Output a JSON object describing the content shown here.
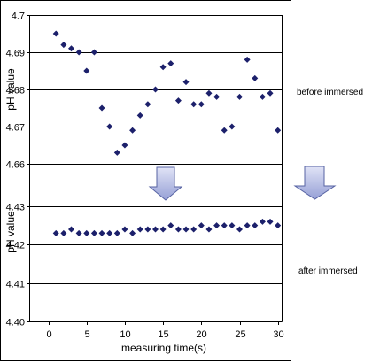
{
  "chart_data": {
    "type": "scatter",
    "xlabel": "measuring time(s)",
    "xlim": [
      -2.5,
      30.5
    ],
    "x_ticks": [
      0,
      5,
      10,
      15,
      20,
      25,
      30
    ],
    "x": [
      1,
      2,
      3,
      4,
      5,
      6,
      7,
      8,
      9,
      10,
      11,
      12,
      13,
      14,
      15,
      16,
      17,
      18,
      19,
      20,
      21,
      22,
      23,
      24,
      25,
      26,
      27,
      28,
      29,
      30
    ],
    "grid": true,
    "y_axis_break": true,
    "legend": "right",
    "marker": "diamond",
    "panels": [
      {
        "ylabel": "pH value",
        "ylim": [
          4.66,
          4.7
        ],
        "y_ticks": [
          "4.7",
          "4.69",
          "4.68",
          "4.67",
          "4.66"
        ],
        "series": [
          {
            "name": "before immersed",
            "values": [
              4.695,
              4.692,
              4.691,
              4.69,
              4.685,
              4.69,
              4.675,
              4.67,
              4.663,
              4.665,
              4.669,
              4.673,
              4.676,
              4.68,
              4.686,
              4.687,
              4.677,
              4.682,
              4.676,
              4.676,
              4.679,
              4.678,
              4.669,
              4.67,
              4.678,
              4.688,
              4.683,
              4.678,
              4.679,
              4.669
            ]
          }
        ]
      },
      {
        "ylabel": "pH value",
        "ylim": [
          4.4,
          4.43
        ],
        "y_ticks": [
          "4.43",
          "4.42",
          "4.41",
          "4.40"
        ],
        "series": [
          {
            "name": "after immersed",
            "values": [
              4.423,
              4.423,
              4.424,
              4.423,
              4.423,
              4.423,
              4.423,
              4.423,
              4.423,
              4.424,
              4.423,
              4.424,
              4.424,
              4.424,
              4.424,
              4.425,
              4.424,
              4.424,
              4.424,
              4.425,
              4.424,
              4.425,
              4.425,
              4.425,
              4.424,
              4.425,
              4.425,
              4.426,
              4.426,
              4.425
            ]
          }
        ]
      }
    ]
  },
  "colors": {
    "marker": "#1c206b",
    "grid": "#000000",
    "axis": "#000000",
    "arrow_fill_top": "#e0e3f6",
    "arrow_fill_bottom": "#96a0d6",
    "arrow_stroke": "#5763a3"
  }
}
